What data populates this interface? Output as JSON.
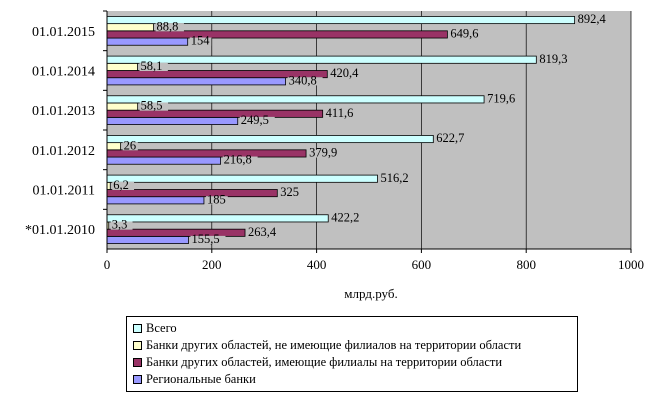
{
  "chart_data": {
    "type": "bar",
    "orientation": "horizontal",
    "categories": [
      "*01.01.2010",
      "01.01.2011",
      "01.01.2012",
      "01.01.2013",
      "01.01.2014",
      "01.01.2015"
    ],
    "series": [
      {
        "name": "Региональные  банки",
        "color": "#9999ff",
        "values": [
          155.5,
          185,
          216.8,
          249.5,
          340.8,
          154
        ],
        "labels": [
          "155,5",
          "185",
          "216,8",
          "249,5",
          "340,8",
          "154"
        ]
      },
      {
        "name": "Банки других областей, имеющие филиалы на территории области",
        "color": "#993366",
        "values": [
          263.4,
          325,
          379.9,
          411.6,
          420.4,
          649.6
        ],
        "labels": [
          "263,4",
          "325",
          "379,9",
          "411,6",
          "420,4",
          "649,6"
        ]
      },
      {
        "name": "Банки других областей, не имеющие филиалов на территории области",
        "color": "#ffffcc",
        "values": [
          3.3,
          6.2,
          26,
          58.5,
          58.1,
          88.8
        ],
        "labels": [
          "3,3",
          "6,2",
          "26",
          "58,5",
          "58,1",
          "88,8"
        ]
      },
      {
        "name": "Всего",
        "color": "#ccffff",
        "values": [
          422.2,
          516.2,
          622.7,
          719.6,
          819.3,
          892.4
        ],
        "labels": [
          "422,2",
          "516,2",
          "622,7",
          "719,6",
          "819,3",
          "892,4"
        ]
      }
    ],
    "xlabel": "млрд.руб.",
    "xlim": [
      0,
      1000
    ],
    "xticks": [
      "0",
      "200",
      "400",
      "600",
      "800",
      "1000"
    ],
    "plot_background": "#c0c0c0",
    "grid": true,
    "legend_position": "bottom",
    "legend_order": [
      "Всего",
      "Банки других областей, не имеющие филиалов на территории области",
      "Банки других областей, имеющие филиалы на территории области",
      "Региональные  банки"
    ]
  }
}
